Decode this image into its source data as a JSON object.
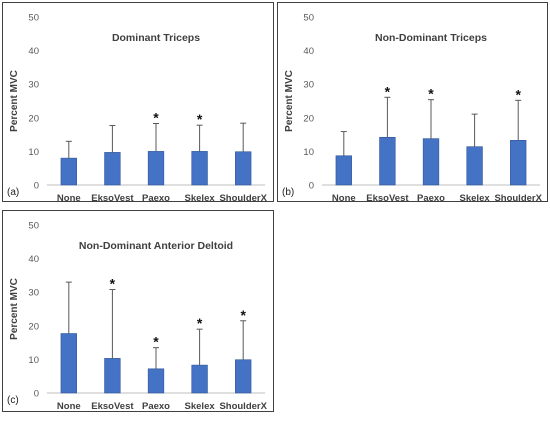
{
  "figure": {
    "colors": {
      "bar": "#4472C4",
      "bar_edge": "#2F5597",
      "axis": "#bfbfbf",
      "error": "#595959",
      "frame": "#404040"
    }
  },
  "chart_data": [
    {
      "panel_label": "(a)",
      "type": "bar",
      "title": "Dominant Triceps",
      "ylabel": "Percent MVC",
      "ylim": [
        0,
        50
      ],
      "yticks": [
        0,
        10,
        20,
        30,
        40,
        50
      ],
      "categories": [
        "None",
        "EksoVest",
        "Paexo",
        "Skelex",
        "ShoulderX"
      ],
      "values": [
        8,
        9.7,
        10,
        10,
        9.9
      ],
      "error_upper": [
        13,
        17.7,
        18.3,
        17.8,
        18.4
      ],
      "significant": [
        false,
        false,
        true,
        true,
        false
      ],
      "grid": false,
      "legend": "none"
    },
    {
      "panel_label": "(b)",
      "type": "bar",
      "title": "Non-Dominant Triceps",
      "ylabel": "Percent MVC",
      "ylim": [
        0,
        50
      ],
      "yticks": [
        0,
        10,
        20,
        30,
        40,
        50
      ],
      "categories": [
        "None",
        "EksoVest",
        "Paexo",
        "Skelex",
        "ShoulderX"
      ],
      "values": [
        8.7,
        14.2,
        13.8,
        11.4,
        13.3
      ],
      "error_upper": [
        15.9,
        26.1,
        25.4,
        21.1,
        25.2
      ],
      "significant": [
        false,
        true,
        true,
        false,
        true
      ],
      "grid": false,
      "legend": "none"
    },
    {
      "panel_label": "(c)",
      "type": "bar",
      "title": "Non-Dominant Anterior Deltoid",
      "ylabel": "Percent MVC",
      "ylim": [
        0,
        50
      ],
      "yticks": [
        0,
        10,
        20,
        30,
        40,
        50
      ],
      "categories": [
        "None",
        "EksoVest",
        "Paexo",
        "Skelex",
        "ShoulderX"
      ],
      "values": [
        17.7,
        10.3,
        7.2,
        8.3,
        9.9
      ],
      "error_upper": [
        33,
        30.8,
        13.5,
        19,
        21.5
      ],
      "significant": [
        false,
        true,
        true,
        true,
        true
      ],
      "grid": false,
      "legend": "none"
    }
  ],
  "significance_marker": "*"
}
